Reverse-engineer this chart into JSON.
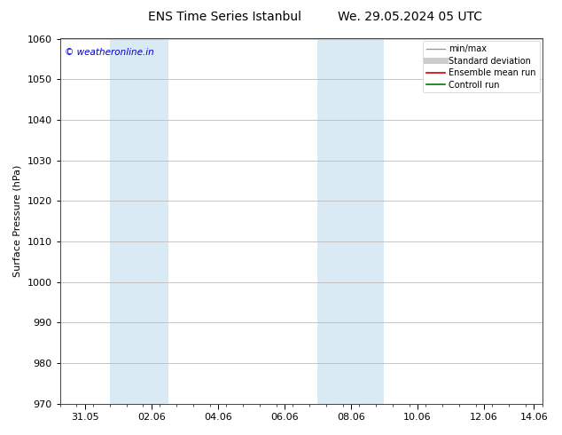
{
  "title_left": "ENS Time Series Istanbul",
  "title_right": "We. 29.05.2024 05 UTC",
  "ylabel": "Surface Pressure (hPa)",
  "ylim": [
    970,
    1060
  ],
  "yticks": [
    970,
    980,
    990,
    1000,
    1010,
    1020,
    1030,
    1040,
    1050,
    1060
  ],
  "xlim_start": 0.0,
  "xlim_end": 14.5,
  "xtick_positions": [
    0.75,
    2.75,
    4.75,
    6.75,
    8.75,
    10.75,
    12.75,
    14.25
  ],
  "xtick_labels": [
    "31.05",
    "02.06",
    "04.06",
    "06.06",
    "08.06",
    "10.06",
    "12.06",
    "14.06"
  ],
  "shaded_bands": [
    {
      "xmin": 1.5,
      "xmax": 3.25,
      "color": "#daeaf5"
    },
    {
      "xmin": 7.75,
      "xmax": 9.75,
      "color": "#daeaf5"
    }
  ],
  "legend_items": [
    {
      "label": "min/max",
      "color": "#999999",
      "lw": 1.0
    },
    {
      "label": "Standard deviation",
      "color": "#cccccc",
      "lw": 5.0
    },
    {
      "label": "Ensemble mean run",
      "color": "#cc0000",
      "lw": 1.2
    },
    {
      "label": "Controll run",
      "color": "#007700",
      "lw": 1.2
    }
  ],
  "copyright_text": "© weatheronline.in",
  "copyright_color": "#0000cc",
  "background_color": "#ffffff",
  "plot_bg_color": "#ffffff",
  "grid_color": "#bbbbbb",
  "title_fontsize": 10,
  "axis_fontsize": 8,
  "tick_fontsize": 8,
  "legend_fontsize": 7
}
